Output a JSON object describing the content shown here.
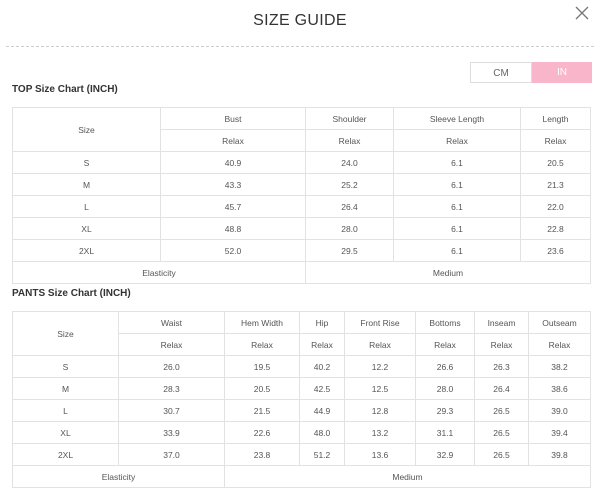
{
  "header": {
    "title": "SIZE GUIDE"
  },
  "units": [
    "CM",
    "IN"
  ],
  "top_table": {
    "title": "TOP Size Chart (INCH)",
    "size_header": "Size",
    "columns": [
      "Bust",
      "Shoulder",
      "Sleeve Length",
      "Length"
    ],
    "subheaders": [
      "Relax",
      "Relax",
      "Relax",
      "Relax"
    ],
    "rows": [
      [
        "S",
        "40.9",
        "24.0",
        "6.1",
        "20.5"
      ],
      [
        "M",
        "43.3",
        "25.2",
        "6.1",
        "21.3"
      ],
      [
        "L",
        "45.7",
        "26.4",
        "6.1",
        "22.0"
      ],
      [
        "XL",
        "48.8",
        "28.0",
        "6.1",
        "22.8"
      ],
      [
        "2XL",
        "52.0",
        "29.5",
        "6.1",
        "23.6"
      ]
    ],
    "footer": [
      "Elasticity",
      "Medium"
    ]
  },
  "pants_table": {
    "title": "PANTS Size Chart (INCH)",
    "size_header": "Size",
    "columns": [
      "Waist",
      "Hem Width",
      "Hip",
      "Front Rise",
      "Bottoms",
      "Inseam",
      "Outseam"
    ],
    "subheaders": [
      "Relax",
      "Relax",
      "Relax",
      "Relax",
      "Relax",
      "Relax",
      "Relax"
    ],
    "rows": [
      [
        "S",
        "26.0",
        "19.5",
        "40.2",
        "12.2",
        "26.6",
        "26.3",
        "38.2"
      ],
      [
        "M",
        "28.3",
        "20.5",
        "42.5",
        "12.5",
        "28.0",
        "26.4",
        "38.6"
      ],
      [
        "L",
        "30.7",
        "21.5",
        "44.9",
        "12.8",
        "29.3",
        "26.5",
        "39.0"
      ],
      [
        "XL",
        "33.9",
        "22.6",
        "48.0",
        "13.2",
        "31.1",
        "26.5",
        "39.4"
      ],
      [
        "2XL",
        "37.0",
        "23.8",
        "51.2",
        "13.6",
        "32.9",
        "26.5",
        "39.8"
      ]
    ],
    "footer": [
      "Elasticity",
      "Medium"
    ]
  }
}
